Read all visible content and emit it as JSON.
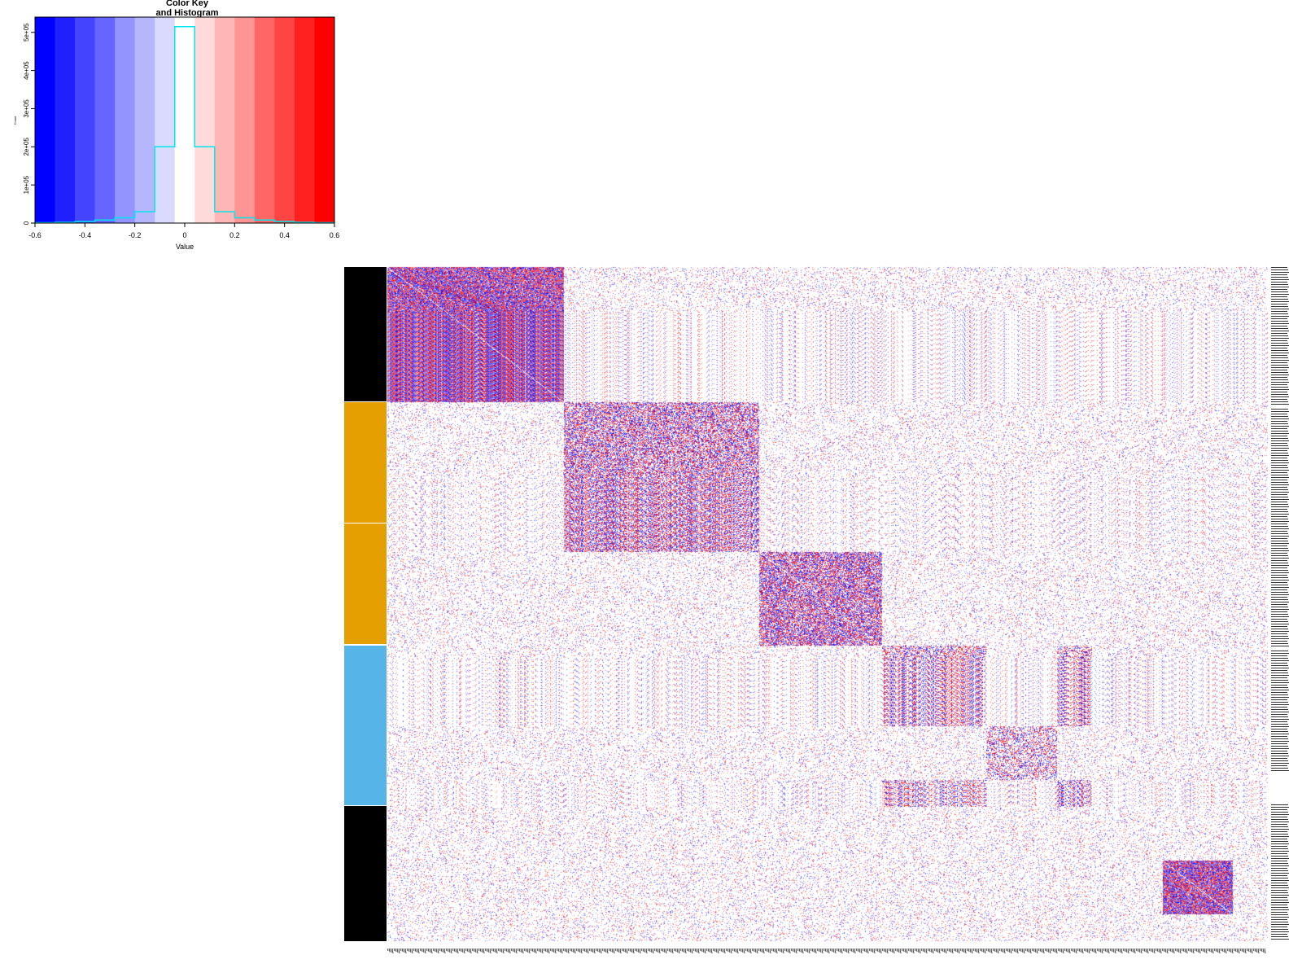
{
  "key": {
    "title_line1": "Color Key",
    "title_line2": "and Histogram",
    "xlabel": "Value",
    "ylabel": "Count",
    "x_ticks": [
      "-0.6",
      "-0.4",
      "-0.2",
      "0",
      "0.2",
      "0.4",
      "0.6"
    ],
    "y_ticks": [
      "0",
      "1e+05",
      "2e+05",
      "3e+05",
      "4e+05",
      "5e+05"
    ]
  },
  "colors": {
    "low": "#0000ff",
    "mid": "#ffffff",
    "high": "#ff0000",
    "histogram_line": "#00e5ee",
    "side_black": "#000000",
    "side_orange": "#e69f00",
    "side_skyblue": "#56b4e9"
  },
  "chart_data": [
    {
      "type": "bar",
      "title": "Color Key\nand Histogram",
      "xlabel": "Value",
      "ylabel": "Count",
      "xlim": [
        -0.6,
        0.6
      ],
      "ylim": [
        0,
        540000
      ],
      "bin_edges": [
        -0.6,
        -0.52,
        -0.44,
        -0.36,
        -0.28,
        -0.2,
        -0.12,
        -0.04,
        0.04,
        0.12,
        0.2,
        0.28,
        0.36,
        0.44,
        0.52,
        0.6
      ],
      "bin_colors": [
        "#0000ff",
        "#2020ff",
        "#4444ff",
        "#6666ff",
        "#9494ff",
        "#b6b6ff",
        "#dadaff",
        "#ffffff",
        "#ffdada",
        "#ffb6b6",
        "#ff9494",
        "#ff6666",
        "#ff4444",
        "#ff2020",
        "#ff0000"
      ],
      "histogram_counts": [
        1000,
        2000,
        4000,
        8000,
        14000,
        30000,
        200000,
        515000,
        200000,
        30000,
        14000,
        8000,
        4000,
        2000,
        1000
      ]
    },
    {
      "type": "heatmap",
      "matrix_size": 1000,
      "value_range": [
        -0.6,
        0.6
      ],
      "modules": [
        {
          "start": 0,
          "end": 200,
          "strength": 0.95
        },
        {
          "start": 200,
          "end": 422,
          "strength": 0.6
        },
        {
          "start": 422,
          "end": 561,
          "strength": 0.7
        },
        {
          "start": 561,
          "end": 680,
          "strength": 0.45
        },
        {
          "start": 680,
          "end": 760,
          "strength": 0.4
        },
        {
          "start": 760,
          "end": 800,
          "strength": 0.45
        },
        {
          "start": 880,
          "end": 960,
          "strength": 0.95
        }
      ],
      "off_diagonal_blocks": [
        {
          "rows": [
            561,
            680
          ],
          "cols": [
            760,
            800
          ],
          "strength": 0.4
        },
        {
          "rows": [
            760,
            800
          ],
          "cols": [
            561,
            680
          ],
          "strength": 0.4
        }
      ],
      "row_side_groups": [
        {
          "start": 0,
          "end": 200,
          "color": "#000000"
        },
        {
          "start": 200,
          "end": 381,
          "color": "#e69f00"
        },
        {
          "start": 381,
          "end": 561,
          "color": "#e69f00"
        },
        {
          "start": 561,
          "end": 800,
          "color": "#56b4e9"
        },
        {
          "start": 800,
          "end": 1000,
          "color": "#000000"
        }
      ]
    }
  ]
}
